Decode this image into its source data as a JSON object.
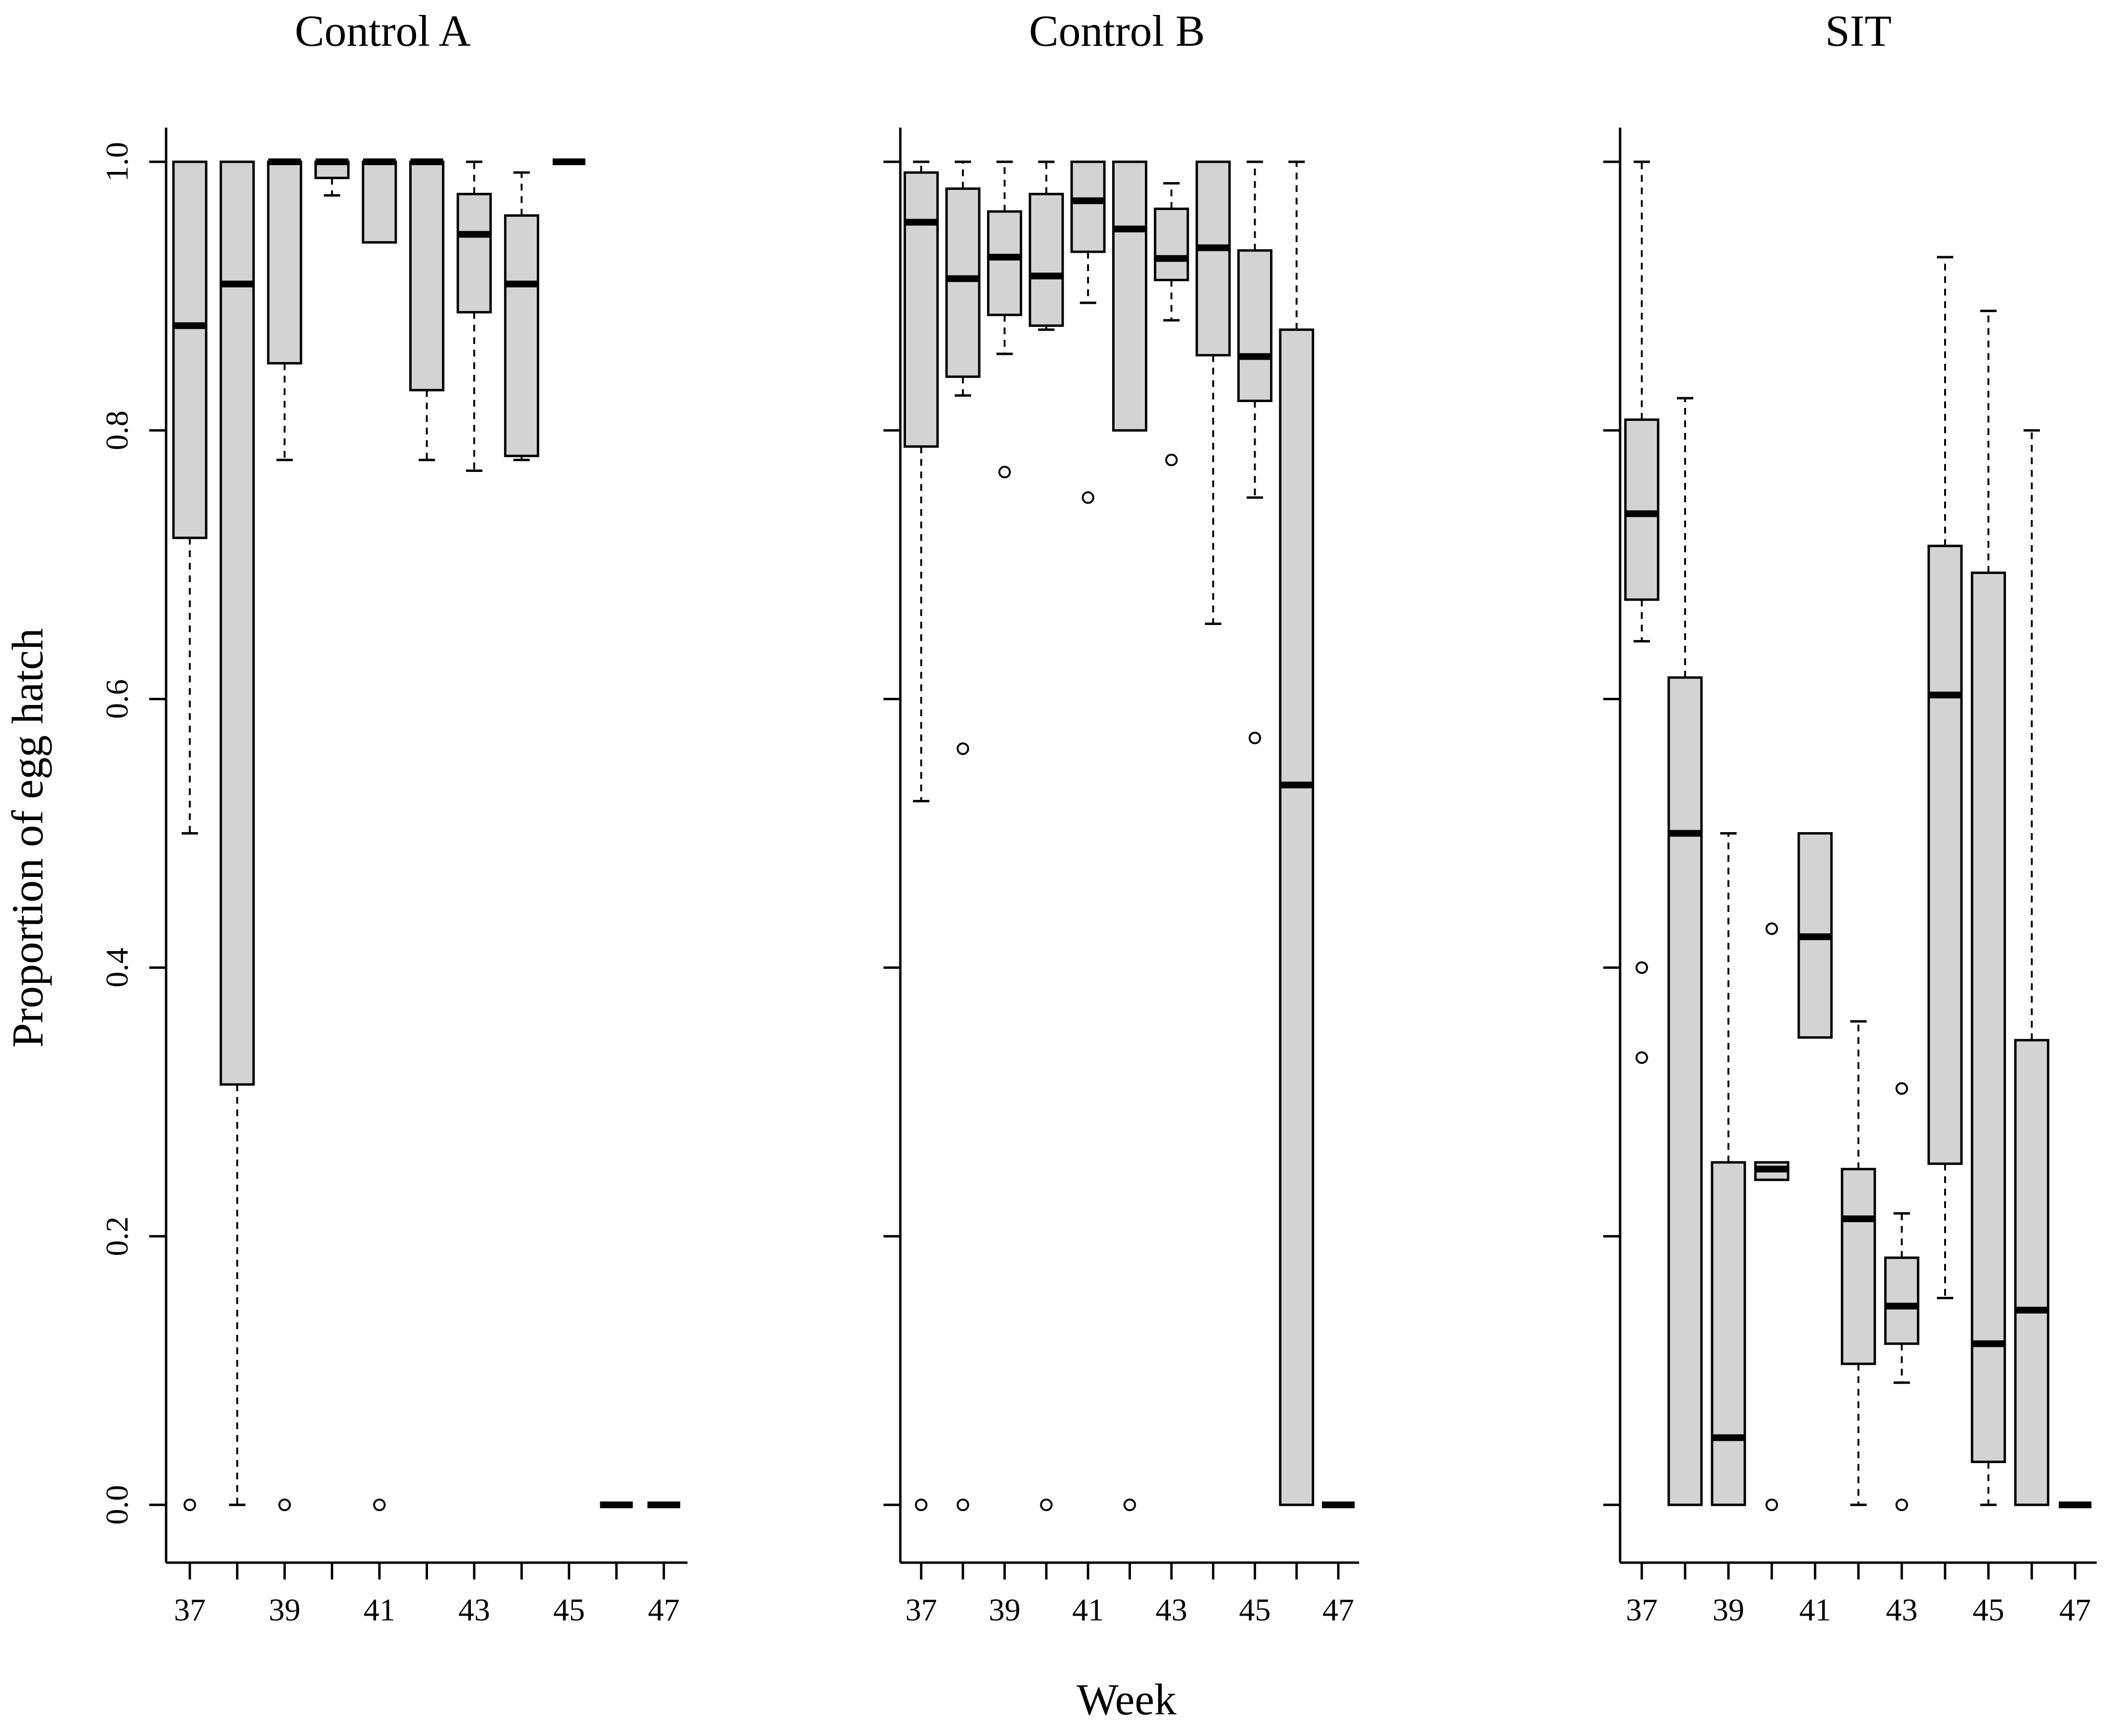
{
  "chart_data": {
    "type": "boxplot",
    "ylabel": "Proportion of egg hatch",
    "xlabel": "Week",
    "ylim": [
      0,
      1
    ],
    "yticks": [
      0.0,
      0.2,
      0.4,
      0.6,
      0.8,
      1.0
    ],
    "ytick_labels": [
      "0.0",
      "0.2",
      "0.4",
      "0.6",
      "0.8",
      "1.0"
    ],
    "xlim": [
      36.5,
      47.5
    ],
    "xticks": [
      37,
      38,
      39,
      40,
      41,
      42,
      43,
      44,
      45,
      46,
      47
    ],
    "xtick_labels": [
      "37",
      "",
      "39",
      "",
      "41",
      "",
      "43",
      "",
      "45",
      "",
      "47"
    ],
    "box_fill": "#d3d3d3",
    "panels": [
      {
        "title": "Control A",
        "boxes": [
          {
            "week": 37,
            "whisker_low": 0.5,
            "q1": 0.72,
            "median": 0.878,
            "q3": 1.0,
            "whisker_high": 1.0,
            "outliers": [
              0.0
            ]
          },
          {
            "week": 38,
            "whisker_low": 0.0,
            "q1": 0.313,
            "median": 0.909,
            "q3": 1.0,
            "whisker_high": 1.0,
            "outliers": []
          },
          {
            "week": 39,
            "whisker_low": 0.778,
            "q1": 0.85,
            "median": 1.0,
            "q3": 1.0,
            "whisker_high": 1.0,
            "outliers": [
              0.0
            ]
          },
          {
            "week": 40,
            "whisker_low": 0.975,
            "q1": 0.988,
            "median": 1.0,
            "q3": 1.0,
            "whisker_high": 1.0,
            "outliers": []
          },
          {
            "week": 41,
            "whisker_low": 0.94,
            "q1": 0.94,
            "median": 1.0,
            "q3": 1.0,
            "whisker_high": 1.0,
            "outliers": [
              0.0
            ]
          },
          {
            "week": 42,
            "whisker_low": 0.778,
            "q1": 0.83,
            "median": 1.0,
            "q3": 1.0,
            "whisker_high": 1.0,
            "outliers": []
          },
          {
            "week": 43,
            "whisker_low": 0.77,
            "q1": 0.888,
            "median": 0.946,
            "q3": 0.976,
            "whisker_high": 1.0,
            "outliers": []
          },
          {
            "week": 44,
            "whisker_low": 0.778,
            "q1": 0.781,
            "median": 0.909,
            "q3": 0.96,
            "whisker_high": 0.992,
            "outliers": []
          },
          {
            "week": 45,
            "whisker_low": 1.0,
            "q1": 1.0,
            "median": 1.0,
            "q3": 1.0,
            "whisker_high": 1.0,
            "outliers": []
          },
          {
            "week": 46,
            "whisker_low": 0.0,
            "q1": 0.0,
            "median": 0.0,
            "q3": 0.0,
            "whisker_high": 0.0,
            "outliers": []
          },
          {
            "week": 47,
            "whisker_low": 0.0,
            "q1": 0.0,
            "median": 0.0,
            "q3": 0.0,
            "whisker_high": 0.0,
            "outliers": []
          }
        ]
      },
      {
        "title": "Control B",
        "boxes": [
          {
            "week": 37,
            "whisker_low": 0.524,
            "q1": 0.788,
            "median": 0.955,
            "q3": 0.992,
            "whisker_high": 1.0,
            "outliers": [
              0.0
            ]
          },
          {
            "week": 38,
            "whisker_low": 0.826,
            "q1": 0.84,
            "median": 0.913,
            "q3": 0.98,
            "whisker_high": 1.0,
            "outliers": [
              0.563,
              0.0
            ]
          },
          {
            "week": 39,
            "whisker_low": 0.857,
            "q1": 0.886,
            "median": 0.929,
            "q3": 0.963,
            "whisker_high": 1.0,
            "outliers": [
              0.769
            ]
          },
          {
            "week": 40,
            "whisker_low": 0.875,
            "q1": 0.878,
            "median": 0.915,
            "q3": 0.976,
            "whisker_high": 1.0,
            "outliers": [
              0.0
            ]
          },
          {
            "week": 41,
            "whisker_low": 0.895,
            "q1": 0.933,
            "median": 0.971,
            "q3": 1.0,
            "whisker_high": 1.0,
            "outliers": [
              0.75
            ]
          },
          {
            "week": 42,
            "whisker_low": 0.8,
            "q1": 0.8,
            "median": 0.95,
            "q3": 1.0,
            "whisker_high": 1.0,
            "outliers": [
              0.0
            ]
          },
          {
            "week": 43,
            "whisker_low": 0.882,
            "q1": 0.912,
            "median": 0.928,
            "q3": 0.965,
            "whisker_high": 0.984,
            "outliers": [
              0.778
            ]
          },
          {
            "week": 44,
            "whisker_low": 0.656,
            "q1": 0.856,
            "median": 0.936,
            "q3": 1.0,
            "whisker_high": 1.0,
            "outliers": []
          },
          {
            "week": 45,
            "whisker_low": 0.75,
            "q1": 0.822,
            "median": 0.855,
            "q3": 0.934,
            "whisker_high": 1.0,
            "outliers": [
              0.571
            ]
          },
          {
            "week": 46,
            "whisker_low": 0.0,
            "q1": 0.0,
            "median": 0.536,
            "q3": 0.875,
            "whisker_high": 1.0,
            "outliers": []
          },
          {
            "week": 47,
            "whisker_low": 0.0,
            "q1": 0.0,
            "median": 0.0,
            "q3": 0.0,
            "whisker_high": 0.0,
            "outliers": []
          }
        ]
      },
      {
        "title": "SIT",
        "boxes": [
          {
            "week": 37,
            "whisker_low": 0.643,
            "q1": 0.674,
            "median": 0.738,
            "q3": 0.808,
            "whisker_high": 1.0,
            "outliers": [
              0.4,
              0.333
            ]
          },
          {
            "week": 38,
            "whisker_low": 0.0,
            "q1": 0.0,
            "median": 0.5,
            "q3": 0.616,
            "whisker_high": 0.824,
            "outliers": []
          },
          {
            "week": 39,
            "whisker_low": 0.0,
            "q1": 0.0,
            "median": 0.05,
            "q3": 0.255,
            "whisker_high": 0.5,
            "outliers": []
          },
          {
            "week": 40,
            "whisker_low": 0.242,
            "q1": 0.242,
            "median": 0.25,
            "q3": 0.255,
            "whisker_high": 0.255,
            "outliers": [
              0.429,
              0.0
            ]
          },
          {
            "week": 41,
            "whisker_low": 0.348,
            "q1": 0.348,
            "median": 0.423,
            "q3": 0.5,
            "whisker_high": 0.5,
            "outliers": []
          },
          {
            "week": 42,
            "whisker_low": 0.0,
            "q1": 0.105,
            "median": 0.213,
            "q3": 0.25,
            "whisker_high": 0.36,
            "outliers": []
          },
          {
            "week": 43,
            "whisker_low": 0.091,
            "q1": 0.12,
            "median": 0.148,
            "q3": 0.184,
            "whisker_high": 0.217,
            "outliers": [
              0.31,
              0.0
            ]
          },
          {
            "week": 44,
            "whisker_low": 0.154,
            "q1": 0.254,
            "median": 0.603,
            "q3": 0.714,
            "whisker_high": 0.929,
            "outliers": []
          },
          {
            "week": 45,
            "whisker_low": 0.0,
            "q1": 0.032,
            "median": 0.12,
            "q3": 0.694,
            "whisker_high": 0.889,
            "outliers": []
          },
          {
            "week": 46,
            "whisker_low": 0.0,
            "q1": 0.0,
            "median": 0.145,
            "q3": 0.346,
            "whisker_high": 0.8,
            "outliers": []
          },
          {
            "week": 47,
            "whisker_low": 0.0,
            "q1": 0.0,
            "median": 0.0,
            "q3": 0.0,
            "whisker_high": 0.0,
            "outliers": []
          }
        ]
      }
    ]
  }
}
